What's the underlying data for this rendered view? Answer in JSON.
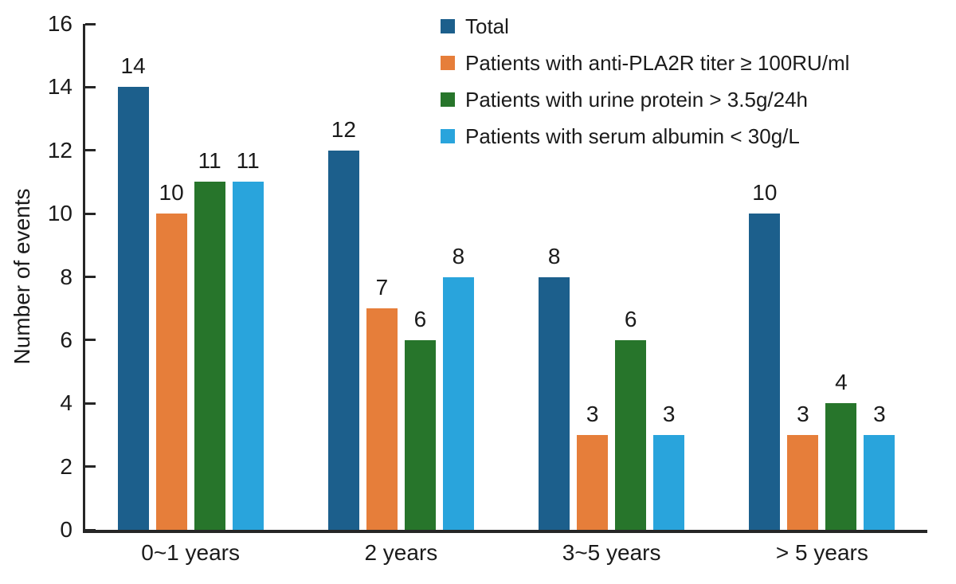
{
  "figure": {
    "background": "#ffffff",
    "axis_color": "#262626",
    "text_color": "#1b1b1b"
  },
  "chart_data": {
    "type": "bar",
    "title": "",
    "xlabel": "",
    "ylabel": "Number of events",
    "ylim": [
      0,
      16
    ],
    "yticks": [
      0,
      2,
      4,
      6,
      8,
      10,
      12,
      14,
      16
    ],
    "grid": false,
    "legend_position": "top-right",
    "bar_value_labels": true,
    "categories": [
      "0~1 years",
      "2 years",
      "3~5 years",
      "> 5 years"
    ],
    "series": [
      {
        "name": "Total",
        "color": "#1C5F8C",
        "values": [
          14,
          12,
          8,
          10
        ]
      },
      {
        "name": "Patients with anti-PLA2R titer ≥ 100RU/ml",
        "color": "#E67E3A",
        "values": [
          10,
          7,
          3,
          3
        ]
      },
      {
        "name": "Patients with urine protein > 3.5g/24h",
        "color": "#27752B",
        "values": [
          11,
          6,
          6,
          4
        ]
      },
      {
        "name": "Patients with serum albumin < 30g/L",
        "color": "#29A4DC",
        "values": [
          11,
          8,
          3,
          3
        ]
      }
    ]
  }
}
